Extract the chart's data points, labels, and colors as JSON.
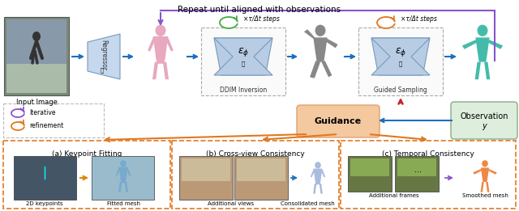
{
  "title": "Repeat until aligned with observations",
  "bg_color": "#ffffff",
  "arrow_color": "#1a6fbd",
  "orange_arrow_color": "#e07820",
  "purple_arrow_color": "#8855cc",
  "red_arrow_color": "#cc2222",
  "regressor_color": "#c5d8ed",
  "eps_box_color": "#b8cce4",
  "guidance_color": "#f4c9a0",
  "observation_color": "#ddeedd",
  "bottom_border_color": "#e07820",
  "green_loop_color": "#44aa44",
  "orange_loop_color": "#e07820",
  "labels": {
    "input_image": "Input Image",
    "regressor": "Regressor",
    "ddim": "DDIM Inversion",
    "guided": "Guided Sampling",
    "guidance": "Guidance",
    "observation": "Observation",
    "obs_y": "y",
    "repeat": "Repeat until aligned with observations",
    "xtau_1": "×τ/Δt steps",
    "xtau_2": "×τ/Δt steps",
    "iterative": "Iterative",
    "refinement": "refinement",
    "kp_title": "(a) Keypoint Fitting",
    "cv_title": "(b) Cross-view Consistency",
    "tc_title": "(c) Temporal Consistency",
    "kp_sub1": "2D keypoints",
    "kp_sub2": "Fitted mesh",
    "cv_sub1": "Additional views",
    "cv_sub2": "Consolidated mesh",
    "tc_sub1": "Additional frames",
    "tc_sub2": "Smoothed mesh"
  },
  "figsize": [
    6.4,
    2.61
  ]
}
